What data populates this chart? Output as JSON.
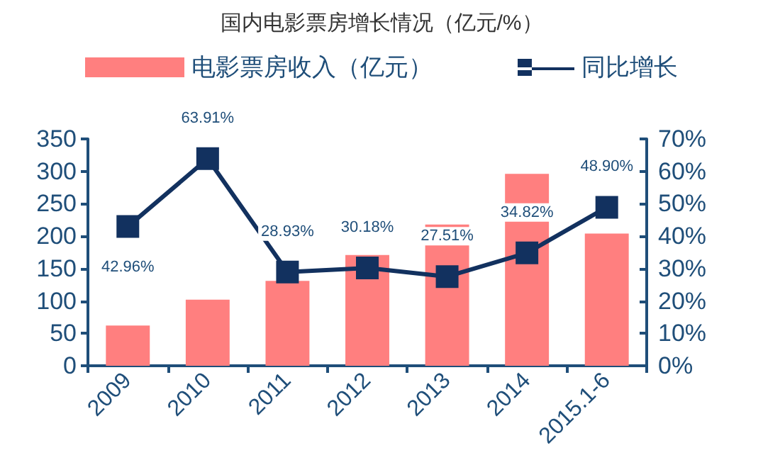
{
  "chart_data": {
    "type": "bar",
    "title": "国内电影票房增长情况（亿元/%）",
    "categories": [
      "2009",
      "2010",
      "2011",
      "2012",
      "2013",
      "2014",
      "2015.1-6"
    ],
    "series": [
      {
        "name": "电影票房收入（亿元）",
        "color": "#ff7f7f",
        "values": [
          62,
          102,
          131,
          171,
          218,
          296,
          204
        ]
      },
      {
        "name": "同比增长",
        "type": "line",
        "axis": "y2",
        "color": "#12315f",
        "marker": "square",
        "values": [
          42.96,
          63.91,
          28.93,
          30.18,
          27.51,
          34.82,
          48.9
        ],
        "value_labels": [
          "42.96%",
          "63.91%",
          "28.93%",
          "30.18%",
          "27.51%",
          "34.82%",
          "48.90%"
        ]
      }
    ],
    "ylim": [
      0,
      350
    ],
    "yticks": [
      0,
      50,
      100,
      150,
      200,
      250,
      300,
      350
    ],
    "y2lim": [
      0,
      70
    ],
    "y2ticks": [
      {
        "value": 0,
        "label": "0%"
      },
      {
        "value": 10,
        "label": "10%"
      },
      {
        "value": 20,
        "label": "20%"
      },
      {
        "value": 30,
        "label": "30%"
      },
      {
        "value": 40,
        "label": "40%"
      },
      {
        "value": 50,
        "label": "50%"
      },
      {
        "value": 60,
        "label": "60%"
      },
      {
        "value": 70,
        "label": "70%"
      }
    ],
    "legend": "top",
    "grid": false
  }
}
